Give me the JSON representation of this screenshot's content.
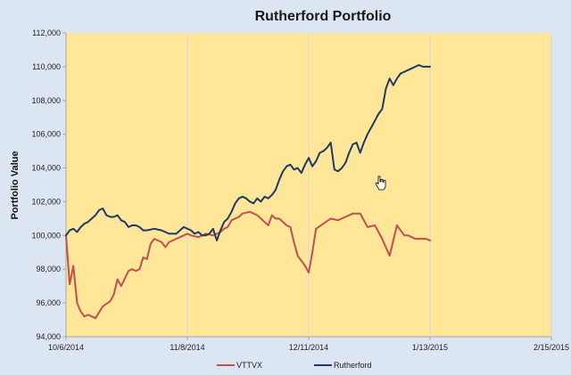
{
  "chart_data": {
    "type": "line",
    "title": "Rutherford Portfolio",
    "xlabel": "",
    "ylabel": "Portfolio Value",
    "x_ticks": [
      "10/6/2014",
      "11/8/2014",
      "12/11/2014",
      "1/13/2015",
      "2/15/2015"
    ],
    "x_tick_days": [
      0,
      33,
      66,
      99,
      132
    ],
    "xlim_days": [
      0,
      132
    ],
    "y_ticks": [
      "94,000",
      "96,000",
      "98,000",
      "100,000",
      "102,000",
      "104,000",
      "106,000",
      "108,000",
      "110,000",
      "112,000"
    ],
    "ylim": [
      94000,
      112000
    ],
    "grid": "vertical",
    "legend_position": "bottom",
    "colors": {
      "plot_area": "#ffe699",
      "background": "#dce6f2",
      "grid": "#d9d9d9",
      "axis": "#a6a6a6",
      "vttvx": "#c0504d",
      "rutherford": "#1f3864"
    },
    "series": [
      {
        "name": "VTTVX",
        "color": "#c0504d",
        "x_days": [
          0,
          1,
          2,
          3,
          4,
          5,
          6,
          8,
          10,
          12,
          13,
          14,
          15,
          17,
          18,
          19,
          20,
          21,
          22,
          23,
          24,
          25,
          26,
          27,
          28,
          29,
          30,
          31,
          32,
          33,
          34,
          36,
          38,
          40,
          42,
          43,
          44,
          45,
          46,
          47,
          48,
          50,
          52,
          53,
          54,
          55,
          56,
          57,
          58,
          59,
          60,
          61,
          62,
          63,
          64,
          65,
          66,
          67,
          68,
          70,
          72,
          74,
          75,
          76,
          78,
          80,
          82,
          84,
          86,
          87,
          88,
          90,
          92,
          93,
          94,
          95,
          96,
          98,
          99
        ],
        "y": [
          100000,
          97100,
          98200,
          96000,
          95500,
          95200,
          95300,
          95100,
          95800,
          96100,
          96500,
          97400,
          97000,
          97900,
          98000,
          97900,
          98000,
          98700,
          98600,
          99500,
          99800,
          99700,
          99600,
          99300,
          99600,
          99700,
          99800,
          99900,
          100000,
          100100,
          100000,
          99900,
          100100,
          100000,
          100200,
          100400,
          100500,
          100900,
          101000,
          101100,
          101300,
          101400,
          101200,
          101000,
          100800,
          100600,
          101200,
          101000,
          101000,
          100800,
          100600,
          100500,
          99600,
          98800,
          98500,
          98200,
          97800,
          99000,
          100400,
          100700,
          101000,
          100900,
          101000,
          101100,
          101300,
          101300,
          100500,
          100600,
          99800,
          99300,
          98800,
          100600,
          100000,
          100000,
          99900,
          99800,
          99800,
          99800,
          99700
        ]
      },
      {
        "name": "Rutherford",
        "color": "#1f3864",
        "x_days": [
          0,
          1,
          2,
          3,
          4,
          5,
          6,
          7,
          8,
          9,
          10,
          11,
          12,
          13,
          14,
          15,
          16,
          17,
          18,
          19,
          20,
          21,
          22,
          24,
          26,
          28,
          30,
          32,
          34,
          35,
          36,
          37,
          38,
          39,
          40,
          41,
          42,
          43,
          44,
          45,
          46,
          47,
          48,
          49,
          50,
          51,
          52,
          53,
          54,
          55,
          56,
          57,
          58,
          59,
          60,
          61,
          62,
          63,
          64,
          65,
          66,
          67,
          68,
          69,
          70,
          71,
          72,
          73,
          74,
          75,
          76,
          77,
          78,
          79,
          80,
          81,
          82,
          83,
          84,
          85,
          86,
          87,
          88,
          89,
          90,
          91,
          92,
          93,
          94,
          95,
          96,
          97,
          98,
          99
        ],
        "y": [
          100000,
          100300,
          100400,
          100200,
          100500,
          100700,
          100800,
          101000,
          101200,
          101500,
          101600,
          101200,
          101100,
          101100,
          101200,
          100900,
          100800,
          100500,
          100600,
          100600,
          100500,
          100300,
          100300,
          100400,
          100300,
          100100,
          100100,
          100500,
          100300,
          100100,
          100200,
          100000,
          100000,
          100100,
          100400,
          99700,
          100300,
          100800,
          101000,
          101400,
          101900,
          102200,
          102300,
          102200,
          102000,
          101900,
          102200,
          102000,
          102300,
          102200,
          102400,
          102700,
          103300,
          103800,
          104100,
          104200,
          103900,
          104000,
          103700,
          104200,
          104600,
          104100,
          104400,
          104900,
          105000,
          105200,
          105500,
          103900,
          103800,
          104000,
          104300,
          104900,
          105400,
          105500,
          104900,
          105500,
          106000,
          106400,
          106800,
          107200,
          107500,
          108700,
          109300,
          108900,
          109300,
          109600,
          109700,
          109800,
          109900,
          110000,
          110100,
          110000,
          110000,
          110000
        ]
      }
    ]
  }
}
